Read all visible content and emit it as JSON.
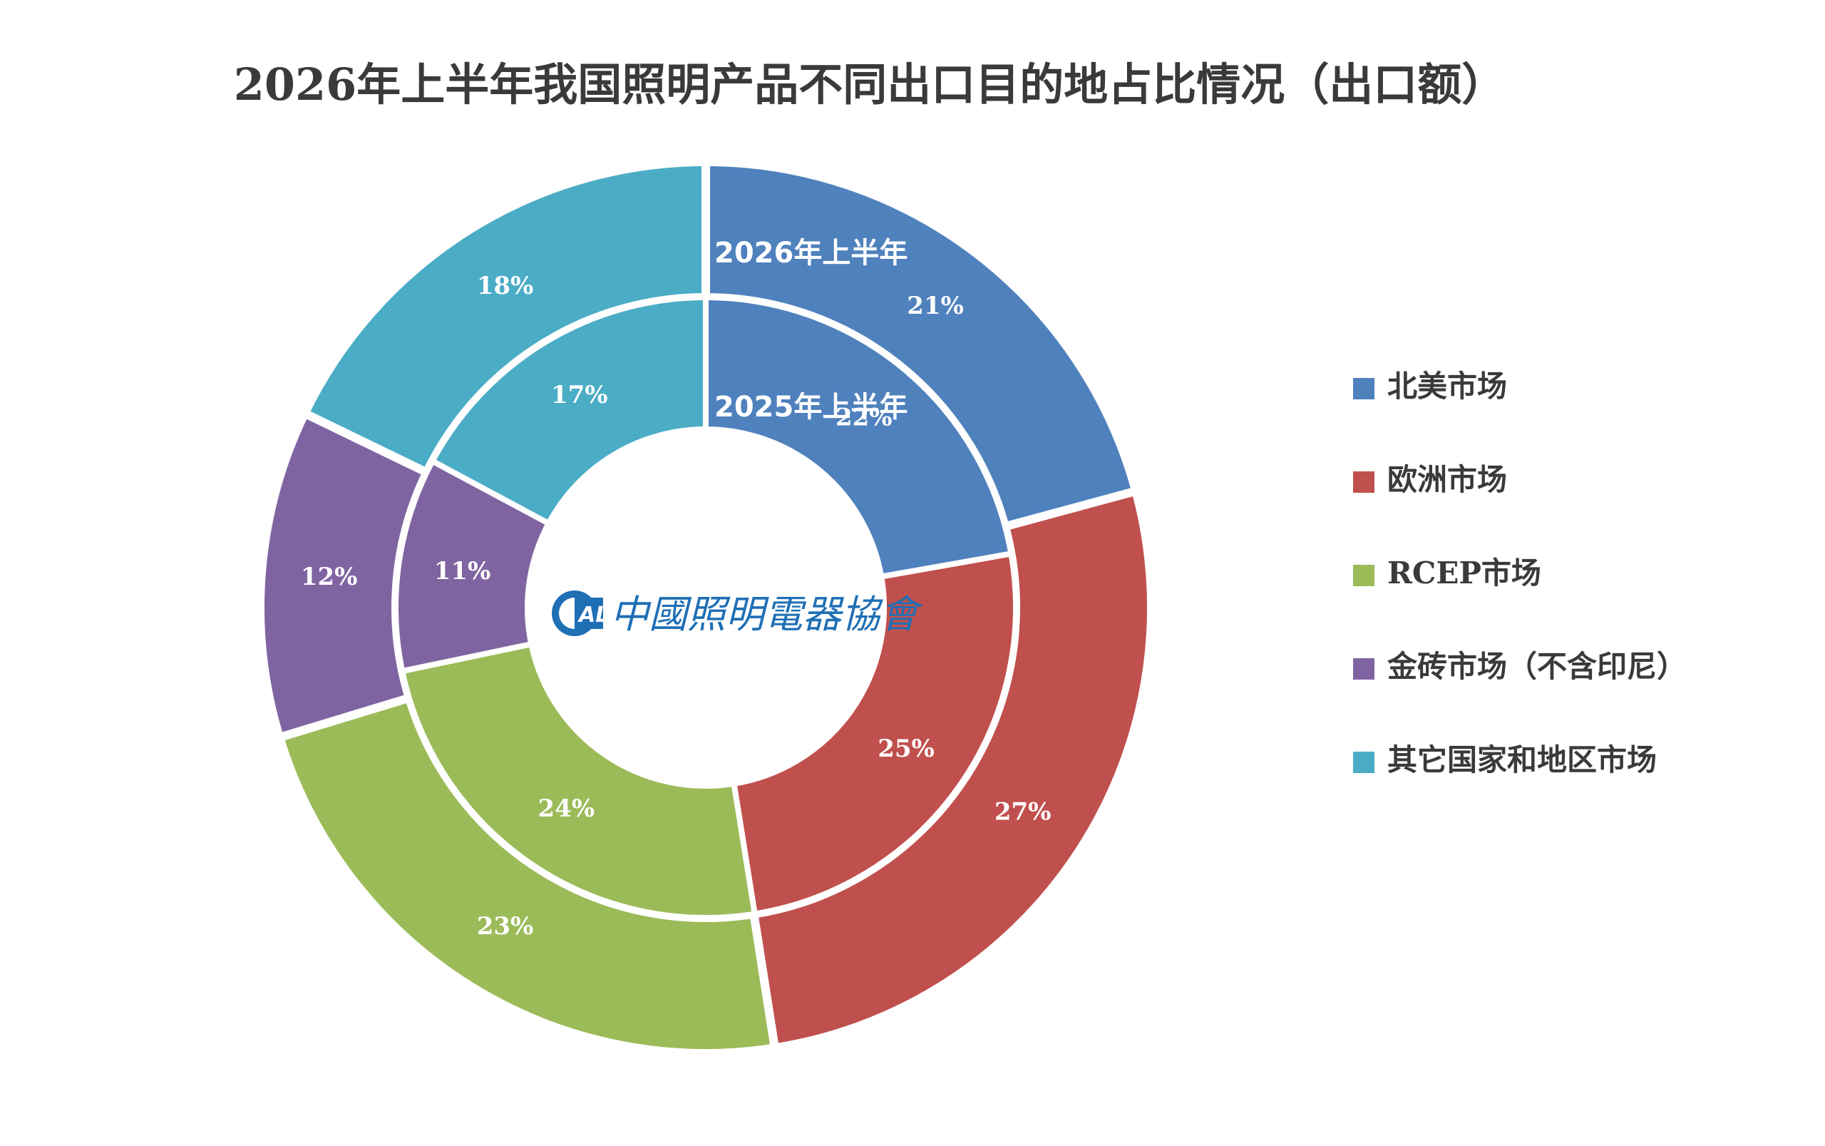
{
  "title": "2026年上半年我国照明产品不同出口目的地占比情况（出口额）",
  "colors": {
    "north_america": "#4f81bd",
    "europe": "#c0504d",
    "rcep": "#9bbb59",
    "brics": "#8064a2",
    "other": "#4bacc6"
  },
  "logo": {
    "mark": "ALI",
    "text": "中國照明電器協會"
  },
  "chart_data": {
    "type": "donut",
    "categories": [
      "北美市场",
      "欧洲市场",
      "RCEP市场",
      "金砖市场（不含印尼）",
      "其它国家和地区市场"
    ],
    "series": [
      {
        "name": "2026年上半年",
        "ring": "outer",
        "values": [
          21,
          27,
          23,
          12,
          18
        ],
        "labels": [
          "21%",
          "27%",
          "23%",
          "12%",
          "18%"
        ]
      },
      {
        "name": "2025年上半年",
        "ring": "inner",
        "values": [
          22,
          25,
          24,
          11,
          17
        ],
        "labels": [
          "22%",
          "25%",
          "24%",
          "11%",
          "17%"
        ]
      }
    ],
    "legend": {
      "position": "right",
      "items": [
        "北美市场",
        "欧洲市场",
        "RCEP市场",
        "金砖市场（不含印尼）",
        "其它国家和地区市场"
      ]
    }
  }
}
